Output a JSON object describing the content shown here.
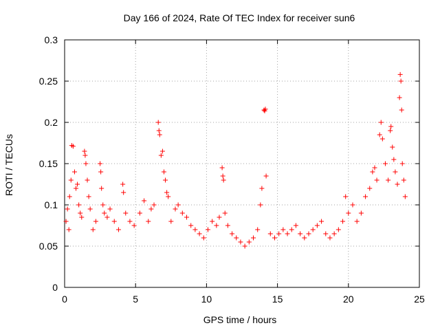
{
  "chart_data": {
    "type": "scatter",
    "title": "Day 166 of 2024, Rate Of TEC Index for receiver sun6",
    "xlabel": "GPS time / hours",
    "ylabel": "ROTI / TECUs",
    "xlim": [
      0,
      25
    ],
    "ylim": [
      0,
      0.3
    ],
    "x_ticks": [
      0,
      5,
      10,
      15,
      20,
      25
    ],
    "y_ticks": [
      0,
      0.05,
      0.1,
      0.15,
      0.2,
      0.25,
      0.3
    ],
    "x_tick_labels": [
      "0",
      "5",
      "10",
      "15",
      "20",
      "25"
    ],
    "y_tick_labels": [
      "0",
      "0.05",
      "0.1",
      "0.15",
      "0.2",
      "0.25",
      "0.3"
    ],
    "grid": true,
    "marker": "plus",
    "color": "#ff0000",
    "series": [
      {
        "points": [
          [
            0.1,
            0.08
          ],
          [
            0.2,
            0.095
          ],
          [
            0.3,
            0.07
          ],
          [
            0.35,
            0.11
          ],
          [
            0.45,
            0.13
          ],
          [
            0.5,
            0.172
          ],
          [
            0.6,
            0.171
          ],
          [
            0.7,
            0.14
          ],
          [
            0.8,
            0.12
          ],
          [
            0.9,
            0.125
          ],
          [
            1.0,
            0.1
          ],
          [
            1.1,
            0.09
          ],
          [
            1.2,
            0.085
          ],
          [
            1.4,
            0.165
          ],
          [
            1.45,
            0.16
          ],
          [
            1.5,
            0.15
          ],
          [
            1.6,
            0.13
          ],
          [
            1.7,
            0.11
          ],
          [
            1.8,
            0.095
          ],
          [
            2.0,
            0.07
          ],
          [
            2.2,
            0.08
          ],
          [
            2.5,
            0.15
          ],
          [
            2.55,
            0.14
          ],
          [
            2.6,
            0.12
          ],
          [
            2.7,
            0.1
          ],
          [
            2.8,
            0.09
          ],
          [
            3.0,
            0.085
          ],
          [
            3.2,
            0.095
          ],
          [
            3.5,
            0.08
          ],
          [
            3.8,
            0.07
          ],
          [
            4.1,
            0.125
          ],
          [
            4.15,
            0.115
          ],
          [
            4.3,
            0.09
          ],
          [
            4.6,
            0.08
          ],
          [
            4.9,
            0.075
          ],
          [
            5.3,
            0.09
          ],
          [
            5.6,
            0.105
          ],
          [
            5.9,
            0.08
          ],
          [
            6.1,
            0.095
          ],
          [
            6.3,
            0.1
          ],
          [
            6.6,
            0.2
          ],
          [
            6.65,
            0.19
          ],
          [
            6.7,
            0.185
          ],
          [
            6.8,
            0.16
          ],
          [
            6.9,
            0.165
          ],
          [
            7.0,
            0.14
          ],
          [
            7.1,
            0.13
          ],
          [
            7.2,
            0.115
          ],
          [
            7.3,
            0.11
          ],
          [
            7.5,
            0.08
          ],
          [
            7.8,
            0.095
          ],
          [
            8.0,
            0.1
          ],
          [
            8.3,
            0.09
          ],
          [
            8.6,
            0.085
          ],
          [
            8.9,
            0.075
          ],
          [
            9.2,
            0.07
          ],
          [
            9.5,
            0.065
          ],
          [
            9.8,
            0.06
          ],
          [
            10.1,
            0.07
          ],
          [
            10.4,
            0.08
          ],
          [
            10.7,
            0.075
          ],
          [
            10.9,
            0.085
          ],
          [
            11.1,
            0.145
          ],
          [
            11.15,
            0.135
          ],
          [
            11.2,
            0.13
          ],
          [
            11.3,
            0.09
          ],
          [
            11.5,
            0.075
          ],
          [
            11.8,
            0.065
          ],
          [
            12.1,
            0.06
          ],
          [
            12.4,
            0.055
          ],
          [
            12.7,
            0.05
          ],
          [
            13.0,
            0.055
          ],
          [
            13.3,
            0.06
          ],
          [
            13.6,
            0.07
          ],
          [
            13.8,
            0.1
          ],
          [
            13.9,
            0.12
          ],
          [
            14.05,
            0.215
          ],
          [
            14.1,
            0.214
          ],
          [
            14.15,
            0.216
          ],
          [
            14.2,
            0.135
          ],
          [
            14.5,
            0.065
          ],
          [
            14.8,
            0.06
          ],
          [
            15.1,
            0.065
          ],
          [
            15.4,
            0.07
          ],
          [
            15.7,
            0.065
          ],
          [
            16.0,
            0.07
          ],
          [
            16.3,
            0.075
          ],
          [
            16.6,
            0.065
          ],
          [
            16.9,
            0.06
          ],
          [
            17.2,
            0.065
          ],
          [
            17.5,
            0.07
          ],
          [
            17.8,
            0.075
          ],
          [
            18.1,
            0.08
          ],
          [
            18.4,
            0.065
          ],
          [
            18.7,
            0.06
          ],
          [
            19.0,
            0.065
          ],
          [
            19.3,
            0.07
          ],
          [
            19.6,
            0.08
          ],
          [
            19.8,
            0.11
          ],
          [
            20.0,
            0.09
          ],
          [
            20.3,
            0.1
          ],
          [
            20.6,
            0.08
          ],
          [
            20.9,
            0.09
          ],
          [
            21.2,
            0.11
          ],
          [
            21.5,
            0.12
          ],
          [
            21.7,
            0.14
          ],
          [
            21.85,
            0.145
          ],
          [
            22.0,
            0.13
          ],
          [
            22.2,
            0.185
          ],
          [
            22.3,
            0.2
          ],
          [
            22.4,
            0.18
          ],
          [
            22.6,
            0.15
          ],
          [
            22.8,
            0.13
          ],
          [
            22.95,
            0.19
          ],
          [
            23.0,
            0.195
          ],
          [
            23.1,
            0.17
          ],
          [
            23.2,
            0.155
          ],
          [
            23.3,
            0.14
          ],
          [
            23.45,
            0.125
          ],
          [
            23.6,
            0.23
          ],
          [
            23.65,
            0.258
          ],
          [
            23.7,
            0.25
          ],
          [
            23.75,
            0.215
          ],
          [
            23.8,
            0.15
          ],
          [
            23.9,
            0.13
          ],
          [
            24.0,
            0.11
          ]
        ]
      }
    ]
  }
}
